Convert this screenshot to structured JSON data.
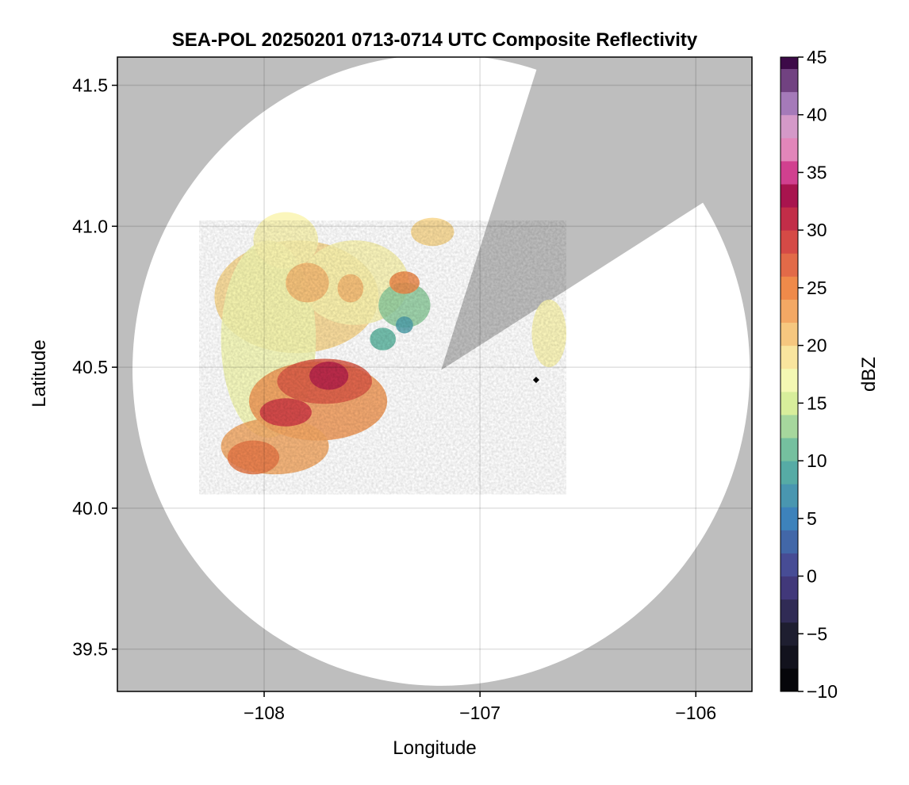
{
  "chart_data": {
    "type": "heatmap",
    "title": "SEA-POL 20250201 0713-0714 UTC Composite Reflectivity",
    "xlabel": "Longitude",
    "ylabel": "Latitude",
    "xlim": [
      -108.68,
      -105.74
    ],
    "ylim": [
      39.35,
      41.6
    ],
    "x_ticks": [
      -108,
      -107,
      -106
    ],
    "x_tick_labels": [
      "−108",
      "−107",
      "−106"
    ],
    "y_ticks": [
      39.5,
      40.0,
      40.5,
      41.0,
      41.5
    ],
    "y_tick_labels": [
      "39.5",
      "40.0",
      "40.5",
      "41.0",
      "41.5"
    ],
    "grid": true,
    "no_data_color": "#bebebe",
    "radar": {
      "center_lon": -107.18,
      "center_lat": 40.49,
      "range_lon": 1.43,
      "range_lat": 1.12,
      "blocked_sectors_deg_clockwise_from_north": [
        [
          18,
          58
        ]
      ]
    },
    "marker": {
      "lon": -106.74,
      "lat": 40.455,
      "shape": "diamond",
      "color": "#000000"
    },
    "echo_regions": [
      {
        "lon": -107.85,
        "lat": 40.75,
        "rlon": 0.38,
        "rlat": 0.2,
        "dbz": 20
      },
      {
        "lon": -107.98,
        "lat": 40.6,
        "rlon": 0.22,
        "rlat": 0.35,
        "dbz": 17
      },
      {
        "lon": -107.75,
        "lat": 40.38,
        "rlon": 0.32,
        "rlat": 0.14,
        "dbz": 24
      },
      {
        "lon": -107.95,
        "lat": 40.22,
        "rlon": 0.25,
        "rlat": 0.1,
        "dbz": 23
      },
      {
        "lon": -107.72,
        "lat": 40.45,
        "rlon": 0.22,
        "rlat": 0.08,
        "dbz": 28
      },
      {
        "lon": -107.58,
        "lat": 40.8,
        "rlon": 0.25,
        "rlat": 0.15,
        "dbz": 18
      },
      {
        "lon": -107.35,
        "lat": 40.72,
        "rlon": 0.12,
        "rlat": 0.08,
        "dbz": 12
      },
      {
        "lon": -107.9,
        "lat": 40.95,
        "rlon": 0.15,
        "rlat": 0.1,
        "dbz": 18
      },
      {
        "lon": -107.22,
        "lat": 40.98,
        "rlon": 0.1,
        "rlat": 0.05,
        "dbz": 20
      },
      {
        "lon": -106.68,
        "lat": 40.62,
        "rlon": 0.08,
        "rlat": 0.12,
        "dbz": 18
      }
    ],
    "echo_cores": [
      {
        "lon": -107.7,
        "lat": 40.47,
        "rlon": 0.09,
        "rlat": 0.05,
        "dbz": 32
      },
      {
        "lon": -107.9,
        "lat": 40.34,
        "rlon": 0.12,
        "rlat": 0.05,
        "dbz": 30
      },
      {
        "lon": -108.05,
        "lat": 40.18,
        "rlon": 0.12,
        "rlat": 0.06,
        "dbz": 26
      },
      {
        "lon": -107.35,
        "lat": 40.8,
        "rlon": 0.07,
        "rlat": 0.04,
        "dbz": 25
      },
      {
        "lon": -107.6,
        "lat": 40.78,
        "rlon": 0.06,
        "rlat": 0.05,
        "dbz": 22
      },
      {
        "lon": -107.8,
        "lat": 40.8,
        "rlon": 0.1,
        "rlat": 0.07,
        "dbz": 22
      },
      {
        "lon": -107.45,
        "lat": 40.6,
        "rlon": 0.06,
        "rlat": 0.04,
        "dbz": 10
      },
      {
        "lon": -107.35,
        "lat": 40.65,
        "rlon": 0.04,
        "rlat": 0.03,
        "dbz": 8
      }
    ],
    "colorbar": {
      "label": "dBZ",
      "min": -10,
      "max": 45,
      "step": 2,
      "ticks": [
        -10,
        -5,
        0,
        5,
        10,
        15,
        20,
        25,
        30,
        35,
        40,
        45
      ],
      "tick_labels": [
        "−10",
        "−5",
        "0",
        "5",
        "10",
        "15",
        "20",
        "25",
        "30",
        "35",
        "40",
        "45"
      ],
      "color_stops": [
        {
          "v": -10,
          "c": "#000000"
        },
        {
          "v": -5,
          "c": "#1e1e30"
        },
        {
          "v": 0,
          "c": "#4a3e8c"
        },
        {
          "v": 5,
          "c": "#3d82bb"
        },
        {
          "v": 10,
          "c": "#5cb5a0"
        },
        {
          "v": 15,
          "c": "#d8ee9b"
        },
        {
          "v": 17.5,
          "c": "#fbfbb9"
        },
        {
          "v": 20,
          "c": "#f8d68c"
        },
        {
          "v": 25,
          "c": "#ef8a4a"
        },
        {
          "v": 30,
          "c": "#cf3a45"
        },
        {
          "v": 33,
          "c": "#a8144e"
        },
        {
          "v": 35,
          "c": "#d1408f"
        },
        {
          "v": 38,
          "c": "#eba9cf"
        },
        {
          "v": 41,
          "c": "#a57ab9"
        },
        {
          "v": 45,
          "c": "#3d0a48"
        }
      ]
    }
  }
}
